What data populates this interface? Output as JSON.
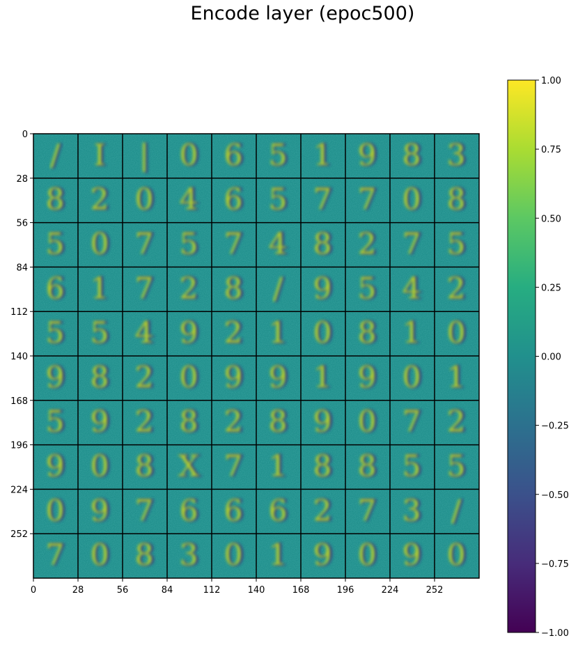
{
  "chart_data": {
    "type": "heatmap",
    "title": "Encode layer (epoc500)",
    "description_grid": "10 x 10 grid of 28x28 pixel weight images",
    "x_ticks": [
      0,
      28,
      56,
      84,
      112,
      140,
      168,
      196,
      224,
      252
    ],
    "y_ticks": [
      0,
      28,
      56,
      84,
      112,
      140,
      168,
      196,
      224,
      252
    ],
    "xlim": [
      0,
      280
    ],
    "ylim": [
      280,
      0
    ],
    "colorbar": {
      "colormap": "viridis",
      "range": [
        -1.0,
        1.0
      ],
      "ticks": [
        1.0,
        0.75,
        0.5,
        0.25,
        0.0,
        -0.25,
        -0.5,
        -0.75,
        -1.0
      ],
      "tick_labels": [
        "1.00",
        "0.75",
        "0.50",
        "0.25",
        "0.00",
        "−0.25",
        "−0.50",
        "−0.75",
        "−1.00"
      ]
    },
    "tiles_rows": 10,
    "tiles_cols": 10,
    "tile_glyphs": [
      [
        "/",
        "I",
        "|",
        "0",
        "6",
        "5",
        "1",
        "9",
        "8",
        "3"
      ],
      [
        "8",
        "2",
        "0",
        "4",
        "6",
        "5",
        "7",
        "7",
        "0",
        "8"
      ],
      [
        "5",
        "0",
        "7",
        "5",
        "7",
        "4",
        "8",
        "2",
        "7",
        "5"
      ],
      [
        "6",
        "1",
        "7",
        "2",
        "8",
        "/",
        "9",
        "5",
        "4",
        "2"
      ],
      [
        "5",
        "5",
        "4",
        "9",
        "2",
        "1",
        "0",
        "8",
        "1",
        "0"
      ],
      [
        "9",
        "8",
        "2",
        "0",
        "9",
        "9",
        "1",
        "9",
        "0",
        "1"
      ],
      [
        "5",
        "9",
        "2",
        "8",
        "2",
        "8",
        "9",
        "0",
        "7",
        "2"
      ],
      [
        "9",
        "0",
        "8",
        "X",
        "7",
        "1",
        "8",
        "8",
        "5",
        "5"
      ],
      [
        "0",
        "9",
        "7",
        "6",
        "6",
        "6",
        "2",
        "7",
        "3",
        "/"
      ],
      [
        "7",
        "0",
        "8",
        "3",
        "0",
        "1",
        "9",
        "0",
        "9",
        "0"
      ]
    ]
  }
}
